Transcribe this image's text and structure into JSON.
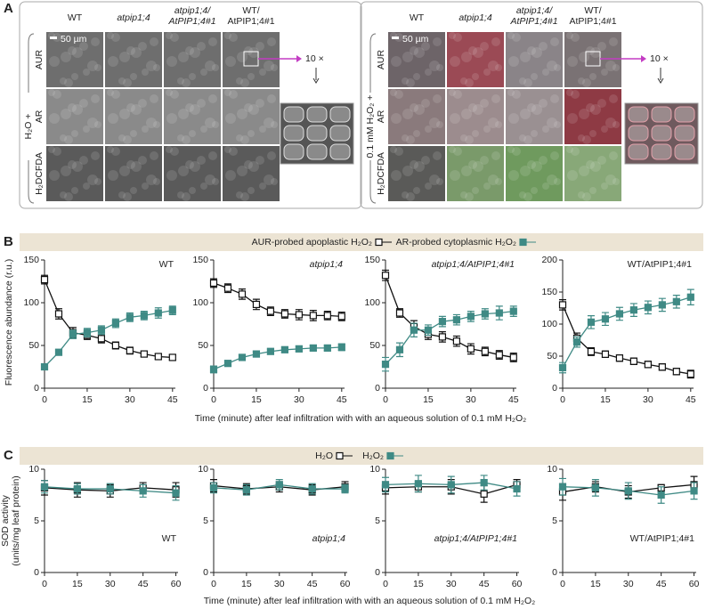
{
  "panel_a": {
    "label": "A",
    "left": {
      "columns": [
        [
          "WT"
        ],
        [
          "atpip1;4"
        ],
        [
          "atpip1;4/",
          "AtPIP1;4#1"
        ],
        [
          "WT/",
          "AtPIP1;4#1"
        ]
      ],
      "rows": [
        "AUR",
        "AR",
        "H₂DCFDA"
      ],
      "treatment": "H₂O +",
      "scale": "50 µm",
      "zoom": "10 ×"
    },
    "right": {
      "columns": [
        [
          "WT"
        ],
        [
          "atpip1;4"
        ],
        [
          "atpip1;4/",
          "AtPIP1;4#1"
        ],
        [
          "WT/",
          "AtPIP1;4#1"
        ]
      ],
      "rows": [
        "AUR",
        "AR",
        "H₂DCFDA"
      ],
      "treatment": "0.1 mM H₂O₂ +",
      "scale": "50 µm",
      "zoom": "10 ×"
    }
  },
  "panel_b": {
    "label": "B",
    "ylabel": "Fluorescence abundance (r.u.)",
    "xlabel": "Time (minute) after leaf infiltration with with an aqueous solution of 0.1 mM H₂O₂"
  },
  "panel_c": {
    "label": "C",
    "ylabel": [
      "SOD activity",
      "(units/mg leaf protein)"
    ],
    "xlabel": "Time (minute) after leaf infiltration with with an aqueous solution of 0.1 mM H₂O₂"
  },
  "chart_data": [
    {
      "type": "line",
      "title": "WT",
      "x": [
        0,
        5,
        10,
        15,
        20,
        25,
        30,
        35,
        40,
        45
      ],
      "xlim": [
        0,
        46
      ],
      "xticks": [
        0,
        15,
        30,
        45
      ],
      "ylim": [
        0,
        150
      ],
      "yticks": [
        0,
        50,
        100,
        150
      ],
      "series": [
        {
          "name": "AUR-probed apoplastic H₂O₂",
          "color": "#111111",
          "filled": false,
          "values": [
            127,
            87,
            65,
            62,
            58,
            50,
            44,
            40,
            37,
            36
          ],
          "errors": [
            5,
            6,
            6,
            5,
            5,
            4,
            4,
            3,
            3,
            3
          ]
        },
        {
          "name": "AR-probed cytoplasmic H₂O₂",
          "color": "#3f8a85",
          "filled": true,
          "values": [
            25,
            42,
            63,
            65,
            68,
            76,
            83,
            85,
            88,
            91
          ],
          "errors": [
            3,
            3,
            5,
            5,
            5,
            5,
            5,
            5,
            6,
            5
          ]
        }
      ]
    },
    {
      "type": "line",
      "title": "atpip1;4",
      "x": [
        0,
        5,
        10,
        15,
        20,
        25,
        30,
        35,
        40,
        45
      ],
      "xlim": [
        0,
        46
      ],
      "xticks": [
        0,
        15,
        30,
        45
      ],
      "ylim": [
        0,
        150
      ],
      "yticks": [
        0,
        50,
        100,
        150
      ],
      "series": [
        {
          "color": "#111111",
          "filled": false,
          "values": [
            123,
            117,
            110,
            98,
            90,
            87,
            86,
            85,
            85,
            84
          ],
          "errors": [
            5,
            5,
            6,
            6,
            5,
            5,
            6,
            6,
            5,
            5
          ]
        },
        {
          "color": "#3f8a85",
          "filled": true,
          "values": [
            22,
            29,
            36,
            40,
            43,
            45,
            46,
            47,
            47,
            48
          ],
          "errors": [
            4,
            3,
            3,
            3,
            3,
            3,
            3,
            3,
            3,
            4
          ]
        }
      ]
    },
    {
      "type": "line",
      "title": "atpip1;4/AtPIP1;4#1",
      "x": [
        0,
        5,
        10,
        15,
        20,
        25,
        30,
        35,
        40,
        45
      ],
      "xlim": [
        0,
        46
      ],
      "xticks": [
        0,
        15,
        30,
        45
      ],
      "ylim": [
        0,
        150
      ],
      "yticks": [
        0,
        50,
        100,
        150
      ],
      "series": [
        {
          "color": "#111111",
          "filled": false,
          "values": [
            132,
            88,
            72,
            63,
            60,
            55,
            46,
            43,
            39,
            36
          ],
          "errors": [
            6,
            5,
            7,
            6,
            6,
            6,
            6,
            5,
            5,
            5
          ]
        },
        {
          "color": "#3f8a85",
          "filled": true,
          "values": [
            28,
            45,
            68,
            68,
            78,
            80,
            84,
            87,
            88,
            90
          ],
          "errors": [
            8,
            8,
            8,
            6,
            6,
            6,
            6,
            6,
            8,
            6
          ]
        }
      ]
    },
    {
      "type": "line",
      "title": "WT/AtPIP1;4#1",
      "x": [
        0,
        5,
        10,
        15,
        20,
        25,
        30,
        35,
        40,
        45
      ],
      "xlim": [
        0,
        46
      ],
      "xticks": [
        0,
        15,
        30,
        45
      ],
      "ylim": [
        0,
        200
      ],
      "yticks": [
        0,
        50,
        100,
        150,
        200
      ],
      "series": [
        {
          "color": "#111111",
          "filled": false,
          "values": [
            130,
            78,
            57,
            53,
            47,
            42,
            37,
            33,
            26,
            22
          ],
          "errors": [
            8,
            8,
            6,
            5,
            5,
            5,
            5,
            5,
            5,
            6
          ]
        },
        {
          "color": "#3f8a85",
          "filled": true,
          "values": [
            32,
            72,
            103,
            108,
            116,
            122,
            126,
            130,
            135,
            142
          ],
          "errors": [
            8,
            8,
            10,
            10,
            10,
            10,
            10,
            10,
            10,
            12
          ]
        }
      ]
    },
    {
      "type": "line",
      "title": "WT",
      "x": [
        0,
        15,
        30,
        45,
        60
      ],
      "xlim": [
        0,
        61
      ],
      "xticks": [
        0,
        15,
        30,
        45,
        60
      ],
      "ylim": [
        0,
        10
      ],
      "yticks": [
        0,
        5,
        10
      ],
      "series": [
        {
          "name": "H₂O",
          "color": "#111111",
          "filled": false,
          "values": [
            8.2,
            8.0,
            7.9,
            8.2,
            8.0
          ],
          "errors": [
            0.7,
            0.7,
            0.6,
            0.5,
            0.7
          ]
        },
        {
          "name": "H₂O₂",
          "color": "#3f8a85",
          "filled": true,
          "values": [
            8.3,
            8.1,
            8.1,
            7.9,
            7.7
          ],
          "errors": [
            0.6,
            0.5,
            0.5,
            0.6,
            0.7
          ]
        }
      ]
    },
    {
      "type": "line",
      "title": "atpip1;4",
      "x": [
        0,
        15,
        30,
        45,
        60
      ],
      "xlim": [
        0,
        61
      ],
      "xticks": [
        0,
        15,
        30,
        45,
        60
      ],
      "ylim": [
        0,
        10
      ],
      "yticks": [
        0,
        5,
        10
      ],
      "series": [
        {
          "color": "#111111",
          "filled": false,
          "values": [
            8.4,
            8.1,
            8.3,
            8.0,
            8.3
          ],
          "errors": [
            0.6,
            0.5,
            0.5,
            0.5,
            0.5
          ]
        },
        {
          "color": "#3f8a85",
          "filled": true,
          "values": [
            8.2,
            8.0,
            8.5,
            8.1,
            8.1
          ],
          "errors": [
            0.5,
            0.5,
            0.5,
            0.5,
            0.4
          ]
        }
      ]
    },
    {
      "type": "line",
      "title": "atpip1;4/AtPIP1;4#1",
      "x": [
        0,
        15,
        30,
        45,
        60
      ],
      "xlim": [
        0,
        61
      ],
      "xticks": [
        0,
        15,
        30,
        45,
        60
      ],
      "ylim": [
        0,
        10
      ],
      "yticks": [
        0,
        5,
        10
      ],
      "series": [
        {
          "color": "#111111",
          "filled": false,
          "values": [
            8.2,
            8.3,
            8.3,
            7.6,
            8.5
          ],
          "errors": [
            0.6,
            0.5,
            0.7,
            0.8,
            0.5
          ]
        },
        {
          "color": "#3f8a85",
          "filled": true,
          "values": [
            8.5,
            8.6,
            8.5,
            8.7,
            8.1
          ],
          "errors": [
            0.7,
            0.8,
            0.8,
            0.7,
            0.7
          ]
        }
      ]
    },
    {
      "type": "line",
      "title": "WT/AtPIP1;4#1",
      "x": [
        0,
        15,
        30,
        45,
        60
      ],
      "xlim": [
        0,
        61
      ],
      "xticks": [
        0,
        15,
        30,
        45,
        60
      ],
      "ylim": [
        0,
        10
      ],
      "yticks": [
        0,
        5,
        10
      ],
      "series": [
        {
          "color": "#111111",
          "filled": false,
          "values": [
            7.8,
            8.3,
            7.8,
            8.2,
            8.5
          ],
          "errors": [
            0.8,
            0.5,
            0.6,
            0.3,
            0.8
          ]
        },
        {
          "color": "#3f8a85",
          "filled": true,
          "values": [
            8.3,
            8.2,
            7.9,
            7.5,
            7.9
          ],
          "errors": [
            0.8,
            0.8,
            0.8,
            0.8,
            0.8
          ]
        }
      ]
    }
  ]
}
